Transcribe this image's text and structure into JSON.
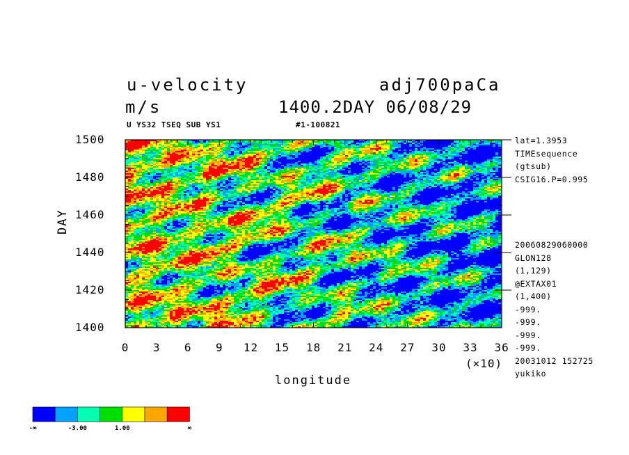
{
  "header": {
    "variable": "u-velocity",
    "units": "m/s",
    "experiment": "adj700paCa",
    "time_label": "1400.2DAY 06/08/29",
    "subtitle_left": "U YS32 TSEQ SUB YS1",
    "subtitle_right": "#1-100821"
  },
  "info_panel": {
    "lines_top": [
      "lat=1.3953",
      "TIMEsequence",
      "(gtsub)",
      "CSIG16.P=0.995"
    ],
    "lines_bottom": [
      "20060829060000",
      "GLON128",
      "(1,129)",
      "@EXTAX01",
      "(1,400)",
      "-999.",
      "-999.",
      "-999.",
      "-999.",
      "20031012 152725",
      "yukiko"
    ]
  },
  "chart_data": {
    "type": "heatmap",
    "xlabel": "longitude",
    "ylabel": "DAY",
    "x_multiplier_label": "(×10)",
    "xlim": [
      0,
      36
    ],
    "ylim": [
      1400,
      1500
    ],
    "x_ticks": [
      0,
      3,
      6,
      9,
      12,
      15,
      18,
      21,
      24,
      27,
      30,
      33,
      36
    ],
    "y_ticks": [
      1400,
      1420,
      1440,
      1460,
      1480,
      1500
    ],
    "colorbar": {
      "colors": [
        "#0000ff",
        "#00a2ff",
        "#00ffb0",
        "#00e000",
        "#ffff00",
        "#ffa500",
        "#ff0000"
      ],
      "labels": [
        "-∞",
        "-3.00",
        "1.00",
        "∞"
      ]
    }
  }
}
